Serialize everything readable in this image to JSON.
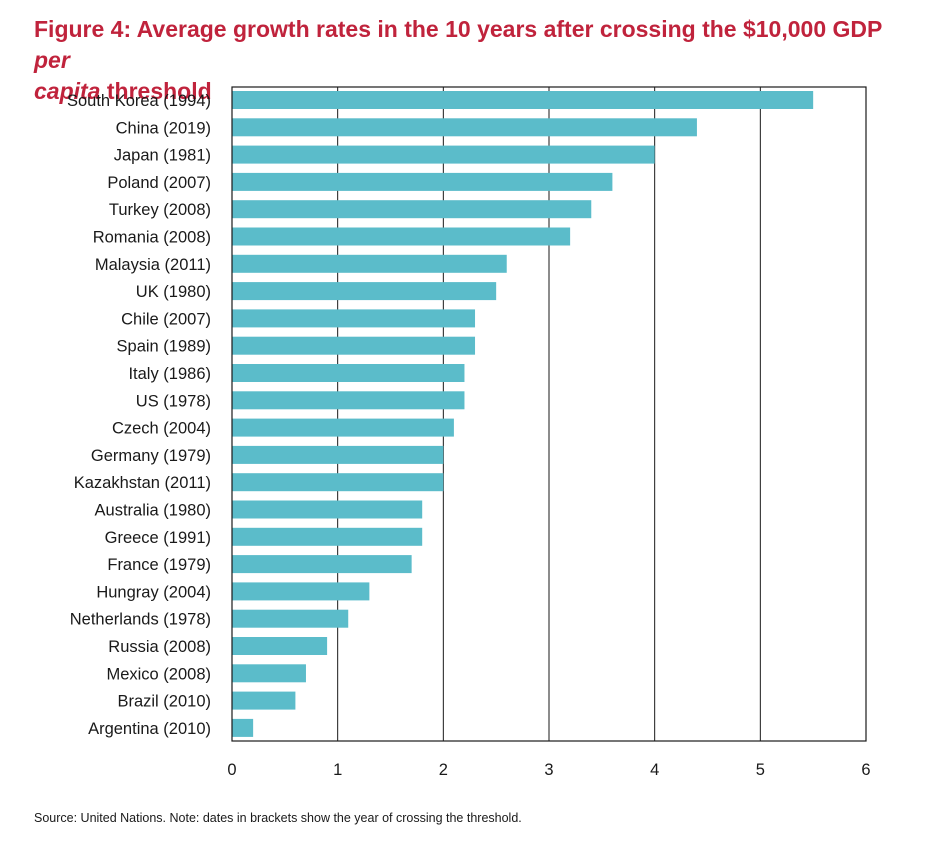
{
  "title": {
    "main": "Figure 4: Average growth rates in the 10 years after crossing the $10,000 GDP ",
    "italic_1": "per",
    "italic_2": "capita",
    "end": " threshold"
  },
  "source": "Source: United Nations. Note: dates in brackets show the year of crossing the threshold.",
  "colors": {
    "bar": "#5bbcca",
    "title": "#c0233c",
    "axis": "#1a1a1a",
    "grid": "#1a1a1a"
  },
  "chart_data": {
    "type": "bar",
    "orientation": "horizontal",
    "categories": [
      "South Korea (1994)",
      "China (2019)",
      "Japan (1981)",
      "Poland (2007)",
      "Turkey (2008)",
      "Romania (2008)",
      "Malaysia (2011)",
      "UK (1980)",
      "Chile (2007)",
      "Spain (1989)",
      "Italy (1986)",
      "US (1978)",
      "Czech (2004)",
      "Germany (1979)",
      "Kazakhstan (2011)",
      "Australia (1980)",
      "Greece (1991)",
      "France (1979)",
      "Hungray (2004)",
      "Netherlands (1978)",
      "Russia (2008)",
      "Mexico (2008)",
      "Brazil (2010)",
      "Argentina (2010)"
    ],
    "values": [
      5.5,
      4.4,
      4.0,
      3.6,
      3.4,
      3.2,
      2.6,
      2.5,
      2.3,
      2.3,
      2.2,
      2.2,
      2.1,
      2.0,
      2.0,
      1.8,
      1.8,
      1.7,
      1.3,
      1.1,
      0.9,
      0.7,
      0.6,
      0.2
    ],
    "xlim": [
      0,
      6
    ],
    "xticks": [
      "0",
      "1",
      "2",
      "3",
      "4",
      "5",
      "6"
    ],
    "grid": true,
    "xlabel": "",
    "ylabel": ""
  }
}
